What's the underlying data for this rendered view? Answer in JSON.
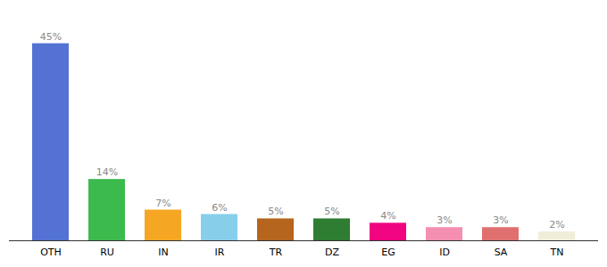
{
  "chart_data": {
    "type": "bar",
    "categories": [
      "OTH",
      "RU",
      "IN",
      "IR",
      "TR",
      "DZ",
      "EG",
      "ID",
      "SA",
      "TN"
    ],
    "values": [
      45,
      14,
      7,
      6,
      5,
      5,
      4,
      3,
      3,
      2
    ],
    "value_labels": [
      "45%",
      "14%",
      "7%",
      "6%",
      "5%",
      "5%",
      "4%",
      "3%",
      "3%",
      "2%"
    ],
    "colors": [
      "#5472d4",
      "#3dba4e",
      "#f5a623",
      "#87ceeb",
      "#b5651d",
      "#2e7d32",
      "#f0047f",
      "#f48fb1",
      "#e07070",
      "#f0edd8"
    ],
    "ylim": [
      0,
      50
    ],
    "data_labels": true,
    "tick_labels": "x",
    "grid": false
  }
}
